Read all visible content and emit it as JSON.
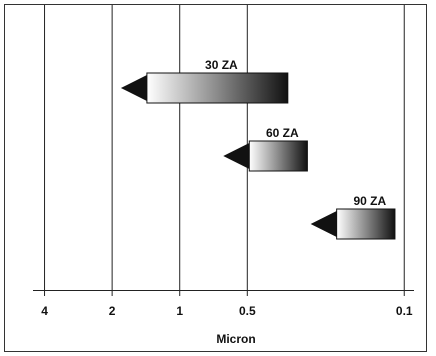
{
  "chart_data": {
    "type": "range-arrow",
    "xlabel": "Micron",
    "x_scale": "reversed-log",
    "xlim": [
      6.0,
      0.08
    ],
    "ticks": [
      {
        "value": 4,
        "label": "4"
      },
      {
        "value": 2,
        "label": "2"
      },
      {
        "value": 1,
        "label": "1"
      },
      {
        "value": 0.5,
        "label": "0.5"
      },
      {
        "value": 0.1,
        "label": "0.1"
      }
    ],
    "grid": true,
    "bars": [
      {
        "label": "30 ZA",
        "from": 1.4,
        "to": 0.33
      },
      {
        "label": "60 ZA",
        "from": 0.49,
        "to": 0.27
      },
      {
        "label": "90 ZA",
        "from": 0.2,
        "to": 0.11
      }
    ]
  }
}
